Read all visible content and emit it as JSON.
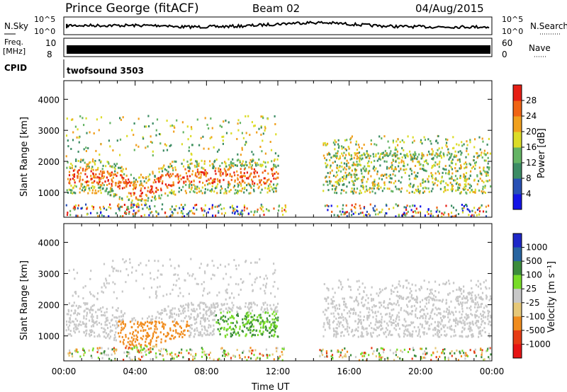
{
  "header": {
    "station": "Prince George (fitACF)",
    "beam": "Beam 02",
    "date": "04/Aug/2015"
  },
  "strips": {
    "nsky_label": "N.Sky",
    "nsearch_label": "N.Search",
    "freq_label_1": "Freq.",
    "freq_label_2": "[MHz]",
    "nave_label": "Nave",
    "cpid_label": "CPID",
    "cpid_value": "twofsound 3503",
    "noise_left_ticks": [
      "10^5",
      "10^0"
    ],
    "noise_right_ticks": [
      "10^5",
      "10^0"
    ],
    "freq_ticks": [
      "10",
      "8"
    ],
    "nave_ticks": [
      "60",
      "0"
    ]
  },
  "colors": {
    "power_scale": [
      "#1414e6",
      "#2850b4",
      "#3c8c64",
      "#64b464",
      "#dcdc28",
      "#f0a01e",
      "#f06414",
      "#e61e14"
    ],
    "velocity_scale": [
      "#1e28c8",
      "#2864a0",
      "#3c8c3c",
      "#78dc28",
      "#c8c8c8",
      "#e6c878",
      "#f08c1e",
      "#e63c14",
      "#e61414"
    ]
  },
  "chart_data": [
    {
      "type": "heatmap",
      "panel": "power",
      "ylabel": "Slant Range [km]",
      "yticks": [
        "1000",
        "2000",
        "3000",
        "4000"
      ],
      "ylim": [
        200,
        4600
      ],
      "xlim": [
        0,
        24
      ],
      "colorbar_label": "Power [dB]",
      "colorbar_ticks": [
        "4",
        "8",
        "12",
        "16",
        "20",
        "24",
        "28"
      ],
      "colorbar_range": [
        0,
        32
      ]
    },
    {
      "type": "heatmap",
      "panel": "velocity",
      "ylabel": "Slant Range [km]",
      "yticks": [
        "1000",
        "2000",
        "3000",
        "4000"
      ],
      "ylim": [
        200,
        4600
      ],
      "xlim": [
        0,
        24
      ],
      "xlabel": "Time UT",
      "xticks": [
        "00:00",
        "04:00",
        "08:00",
        "12:00",
        "16:00",
        "20:00",
        "00:00"
      ],
      "colorbar_label": "Velocity [m s⁻¹]",
      "colorbar_ticks": [
        "1000",
        "500",
        "100",
        "25",
        "-25",
        "-100",
        "-500",
        "-1000"
      ]
    }
  ]
}
